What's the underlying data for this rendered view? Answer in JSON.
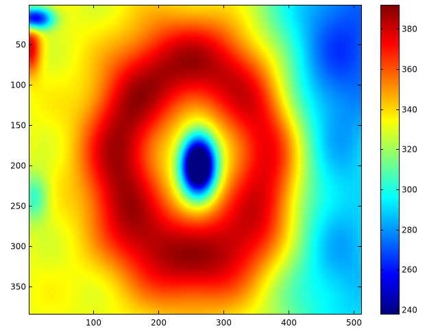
{
  "chart_data": {
    "type": "heatmap",
    "title": "",
    "xlabel": "",
    "ylabel": "",
    "colormap": "jet",
    "grid": false,
    "x_range": [
      1,
      512
    ],
    "y_range": [
      1,
      384
    ],
    "y_reversed": true,
    "x_ticks": [
      100,
      200,
      300,
      400,
      500
    ],
    "y_ticks": [
      50,
      100,
      150,
      200,
      250,
      300,
      350
    ],
    "colorbar": {
      "placement": "right",
      "range": [
        238,
        392
      ],
      "ticks": [
        240,
        260,
        280,
        300,
        320,
        340,
        360,
        380
      ]
    },
    "background_level": 332,
    "features": [
      {
        "name": "red ring (max ~385)",
        "shape": "ring",
        "cx": 255,
        "cy": 195,
        "rx": 115,
        "ry": 120,
        "width": 42,
        "amplitude": 55
      },
      {
        "name": "central cold spot (min ~240)",
        "shape": "blob",
        "cx": 262,
        "cy": 200,
        "rx": 26,
        "ry": 36,
        "amplitude": -140
      },
      {
        "name": "blue region top-right",
        "shape": "blob",
        "cx": 500,
        "cy": 30,
        "rx": 130,
        "ry": 170,
        "amplitude": -55
      },
      {
        "name": "cyan region bottom-right",
        "shape": "blob",
        "cx": 510,
        "cy": 350,
        "rx": 120,
        "ry": 130,
        "amplitude": -35
      },
      {
        "name": "cyan band right",
        "shape": "blob",
        "cx": 470,
        "cy": 200,
        "rx": 70,
        "ry": 230,
        "amplitude": -18
      },
      {
        "name": "blue spot top-left corner",
        "shape": "blob",
        "cx": 10,
        "cy": 18,
        "rx": 28,
        "ry": 14,
        "amplitude": -85
      },
      {
        "name": "red patch left edge",
        "shape": "blob",
        "cx": 4,
        "cy": 55,
        "rx": 16,
        "ry": 32,
        "amplitude": 45
      },
      {
        "name": "cyan patch left edge",
        "shape": "blob",
        "cx": 10,
        "cy": 240,
        "rx": 22,
        "ry": 30,
        "amplitude": -30
      }
    ]
  }
}
